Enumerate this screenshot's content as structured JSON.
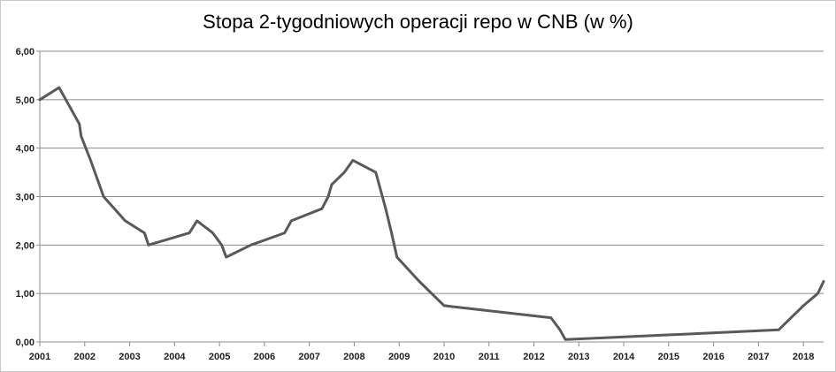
{
  "chart_data": {
    "type": "line",
    "title": "Stopa 2-tygodniowych operacji repo w CNB (w %)",
    "xlabel": "",
    "ylabel": "",
    "xlim": [
      2001,
      2018.45
    ],
    "ylim": [
      0,
      6
    ],
    "grid": "horizontal",
    "line_color": "#595959",
    "y_ticks": [
      "0,00",
      "1,00",
      "2,00",
      "3,00",
      "4,00",
      "5,00",
      "6,00"
    ],
    "x_ticks": [
      "2001",
      "2002",
      "2003",
      "2004",
      "2005",
      "2006",
      "2007",
      "2008",
      "2009",
      "2010",
      "2011",
      "2012",
      "2013",
      "2014",
      "2015",
      "2016",
      "2017",
      "2018"
    ],
    "series": [
      {
        "x": [
          2001.0,
          2001.43,
          2001.88,
          2001.92,
          2002.13,
          2002.42,
          2002.9,
          2003.33,
          2003.42,
          2004.33,
          2004.5,
          2004.85,
          2005.05,
          2005.15,
          2005.7,
          2006.45,
          2006.6,
          2007.28,
          2007.42,
          2007.5,
          2007.78,
          2007.97,
          2008.48,
          2008.7,
          2008.83,
          2008.95,
          2009.45,
          2010.0,
          2012.38,
          2012.58,
          2012.7,
          2017.45,
          2018.0,
          2018.32,
          2018.45
        ],
        "y": [
          5.0,
          5.25,
          4.5,
          4.25,
          3.75,
          3.0,
          2.5,
          2.25,
          2.0,
          2.25,
          2.5,
          2.25,
          2.0,
          1.75,
          2.0,
          2.25,
          2.5,
          2.75,
          3.0,
          3.25,
          3.5,
          3.75,
          3.5,
          2.75,
          2.25,
          1.75,
          1.25,
          0.75,
          0.5,
          0.25,
          0.05,
          0.25,
          0.75,
          1.0,
          1.25
        ]
      }
    ]
  }
}
